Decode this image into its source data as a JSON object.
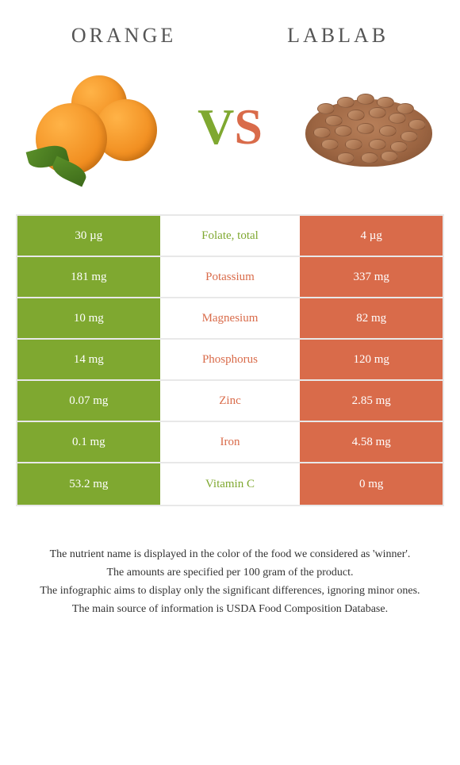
{
  "foods": {
    "left": {
      "name": "ORANGE",
      "color": "#7fa830"
    },
    "right": {
      "name": "LABLAB",
      "color": "#d96b4a"
    }
  },
  "vs": {
    "v": "V",
    "s": "S"
  },
  "colors": {
    "green": "#7fa830",
    "red_orange": "#d96b4a",
    "border": "#e8e8e8",
    "text": "#333333"
  },
  "rows": [
    {
      "left": "30 µg",
      "label": "Folate, total",
      "right": "4 µg",
      "winner": "left"
    },
    {
      "left": "181 mg",
      "label": "Potassium",
      "right": "337 mg",
      "winner": "right"
    },
    {
      "left": "10 mg",
      "label": "Magnesium",
      "right": "82 mg",
      "winner": "right"
    },
    {
      "left": "14 mg",
      "label": "Phosphorus",
      "right": "120 mg",
      "winner": "right"
    },
    {
      "left": "0.07 mg",
      "label": "Zinc",
      "right": "2.85 mg",
      "winner": "right"
    },
    {
      "left": "0.1 mg",
      "label": "Iron",
      "right": "4.58 mg",
      "winner": "right"
    },
    {
      "left": "53.2 mg",
      "label": "Vitamin C",
      "right": "0 mg",
      "winner": "left"
    }
  ],
  "footnotes": [
    "The nutrient name is displayed in the color of the food we considered as 'winner'.",
    "The amounts are specified per 100 gram of the product.",
    "The infographic aims to display only the significant differences, ignoring minor ones.",
    "The main source of information is USDA Food Composition Database."
  ]
}
